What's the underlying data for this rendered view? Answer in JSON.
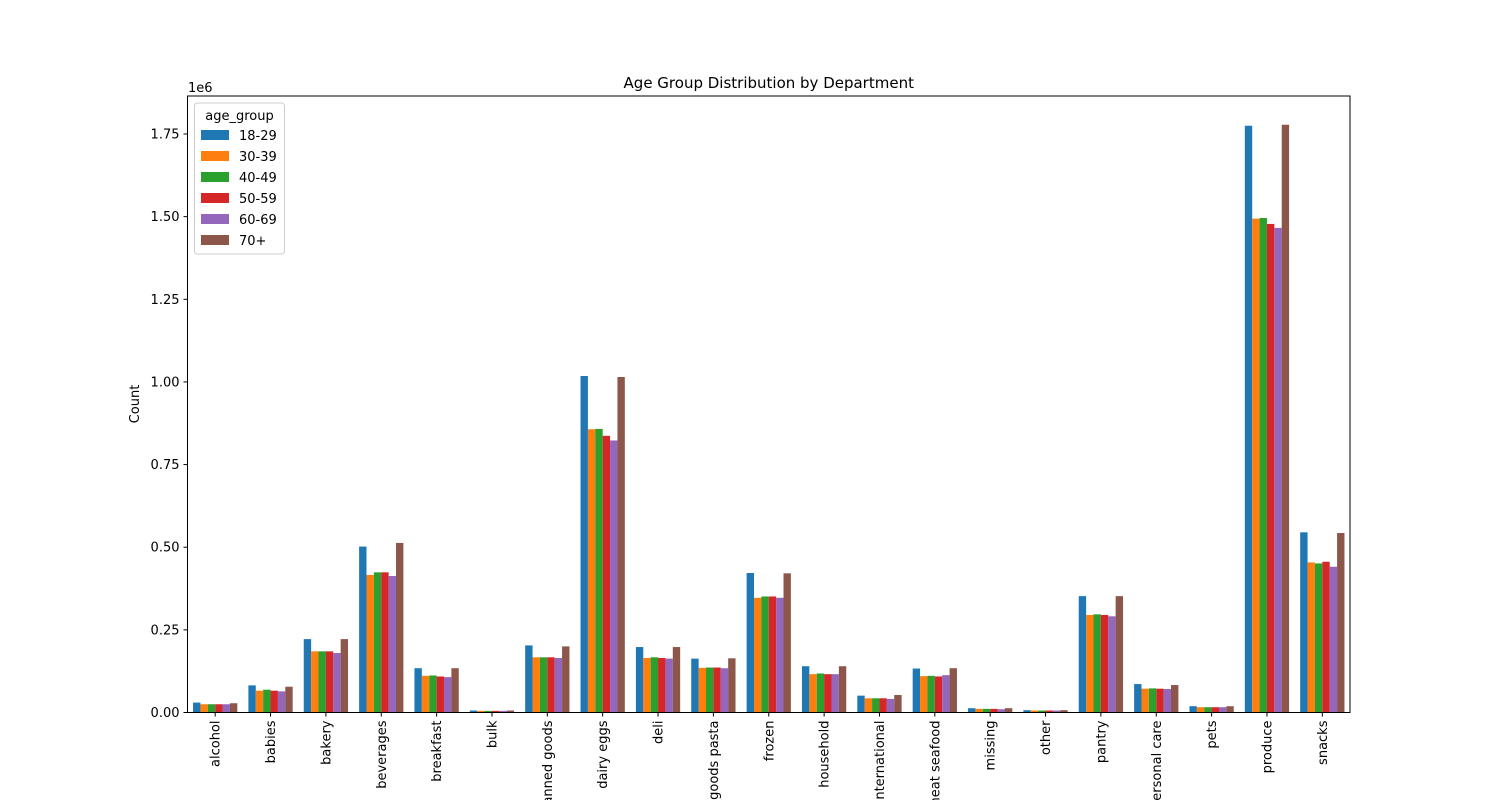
{
  "chart_data": {
    "type": "bar",
    "title": "Age Group Distribution by Department",
    "xlabel": "",
    "ylabel": "Count",
    "y_offset_label": "1e6",
    "ylim": [
      0,
      1.865
    ],
    "y_ticks": [
      0.0,
      0.25,
      0.5,
      0.75,
      1.0,
      1.25,
      1.5,
      1.75
    ],
    "y_tick_labels": [
      "0.00",
      "0.25",
      "0.50",
      "0.75",
      "1.00",
      "1.25",
      "1.50",
      "1.75"
    ],
    "grid": false,
    "legend": {
      "title": "age_group",
      "placement": "top-left"
    },
    "categories": [
      "alcohol",
      "babies",
      "bakery",
      "beverages",
      "breakfast",
      "bulk",
      "canned goods",
      "dairy eggs",
      "deli",
      "dry goods pasta",
      "frozen",
      "household",
      "international",
      "meat seafood",
      "missing",
      "other",
      "pantry",
      "personal care",
      "pets",
      "produce",
      "snacks"
    ],
    "series": [
      {
        "name": "18-29",
        "color": "#1f77b4",
        "values": [
          0.03,
          0.082,
          0.222,
          0.502,
          0.134,
          0.006,
          0.203,
          1.018,
          0.198,
          0.163,
          0.422,
          0.14,
          0.051,
          0.133,
          0.013,
          0.007,
          0.352,
          0.086,
          0.019,
          1.775,
          0.545
        ]
      },
      {
        "name": "30-39",
        "color": "#ff7f0e",
        "values": [
          0.025,
          0.066,
          0.185,
          0.416,
          0.111,
          0.005,
          0.167,
          0.857,
          0.165,
          0.135,
          0.347,
          0.116,
          0.043,
          0.11,
          0.011,
          0.006,
          0.295,
          0.072,
          0.016,
          1.494,
          0.454
        ]
      },
      {
        "name": "40-49",
        "color": "#2ca02c",
        "values": [
          0.025,
          0.069,
          0.185,
          0.424,
          0.112,
          0.005,
          0.167,
          0.858,
          0.167,
          0.136,
          0.351,
          0.118,
          0.043,
          0.111,
          0.011,
          0.006,
          0.297,
          0.073,
          0.016,
          1.496,
          0.451
        ]
      },
      {
        "name": "50-59",
        "color": "#d62728",
        "values": [
          0.025,
          0.066,
          0.185,
          0.424,
          0.109,
          0.005,
          0.167,
          0.837,
          0.165,
          0.136,
          0.351,
          0.116,
          0.043,
          0.109,
          0.011,
          0.006,
          0.295,
          0.072,
          0.016,
          1.478,
          0.456
        ]
      },
      {
        "name": "60-69",
        "color": "#9467bd",
        "values": [
          0.025,
          0.064,
          0.18,
          0.413,
          0.107,
          0.005,
          0.165,
          0.823,
          0.163,
          0.134,
          0.347,
          0.116,
          0.041,
          0.113,
          0.01,
          0.006,
          0.291,
          0.071,
          0.016,
          1.466,
          0.441
        ]
      },
      {
        "name": "70+",
        "color": "#8c564b",
        "values": [
          0.028,
          0.078,
          0.222,
          0.513,
          0.134,
          0.006,
          0.2,
          1.015,
          0.198,
          0.164,
          0.421,
          0.14,
          0.053,
          0.134,
          0.013,
          0.007,
          0.352,
          0.083,
          0.019,
          1.778,
          0.543
        ]
      }
    ]
  }
}
